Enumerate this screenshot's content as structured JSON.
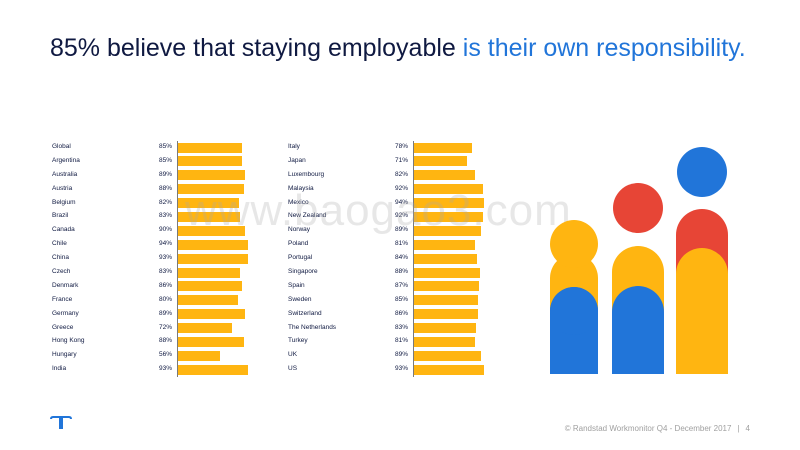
{
  "title": {
    "part1": "85% believe that staying employable ",
    "part2": "is their own responsibility."
  },
  "watermark": "www.baogao3.com",
  "footer": {
    "copyright": "© Randstad Workmonitor Q4 - December 2017",
    "page_number": "4"
  },
  "colors": {
    "bar": "#ffb511",
    "navy": "#0f1941",
    "accent_blue": "#2175d9",
    "red": "#e74536"
  },
  "chart_data": [
    {
      "type": "bar",
      "orientation": "horizontal",
      "xlim": [
        0,
        100
      ],
      "categories": [
        "Global",
        "Argentina",
        "Australia",
        "Austria",
        "Belgium",
        "Brazil",
        "Canada",
        "Chile",
        "China",
        "Czech",
        "Denmark",
        "France",
        "Germany",
        "Greece",
        "Hong Kong",
        "Hungary",
        "India"
      ],
      "value_labels": [
        "85%",
        "85%",
        "89%",
        "88%",
        "82%",
        "83%",
        "90%",
        "94%",
        "93%",
        "83%",
        "86%",
        "80%",
        "89%",
        "72%",
        "88%",
        "56%",
        "93%"
      ],
      "values": [
        85,
        85,
        89,
        88,
        82,
        83,
        90,
        94,
        93,
        83,
        86,
        80,
        89,
        72,
        88,
        56,
        93
      ]
    },
    {
      "type": "bar",
      "orientation": "horizontal",
      "xlim": [
        0,
        100
      ],
      "categories": [
        "Italy",
        "Japan",
        "Luxembourg",
        "Malaysia",
        "Mexico",
        "New Zealand",
        "Norway",
        "Poland",
        "Portugal",
        "Singapore",
        "Spain",
        "Sweden",
        "Switzerland",
        "The Netherlands",
        "Turkey",
        "UK",
        "US"
      ],
      "value_labels": [
        "78%",
        "71%",
        "82%",
        "92%",
        "94%",
        "92%",
        "89%",
        "81%",
        "84%",
        "88%",
        "87%",
        "85%",
        "86%",
        "83%",
        "81%",
        "89%",
        "93%"
      ],
      "values": [
        78,
        71,
        82,
        92,
        94,
        92,
        89,
        81,
        84,
        88,
        87,
        85,
        86,
        83,
        81,
        89,
        93
      ]
    }
  ]
}
